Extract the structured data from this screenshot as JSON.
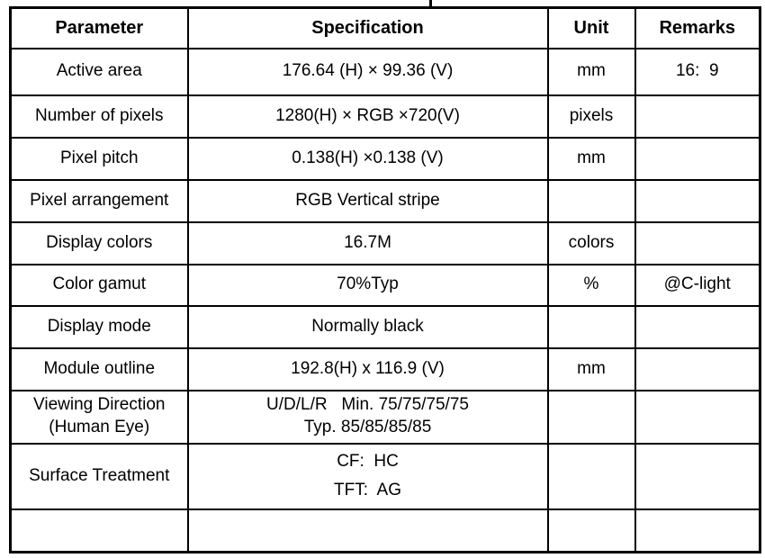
{
  "page": {
    "background": "#ffffff",
    "border_color": "#000000",
    "text_color": "#000000"
  },
  "table": {
    "columns": {
      "parameter": "Parameter",
      "specification": "Specification",
      "unit": "Unit",
      "remarks": "Remarks"
    },
    "rows": [
      {
        "parameter": "Active area",
        "specification": "176.64 (H) × 99.36 (V)",
        "unit": "mm",
        "remarks": "16:  9"
      },
      {
        "parameter": "Number of pixels",
        "specification": "1280(H) × RGB ×720(V)",
        "unit": "pixels",
        "remarks": ""
      },
      {
        "parameter": "Pixel pitch",
        "specification": "0.138(H) ×0.138 (V)",
        "unit": "mm",
        "remarks": ""
      },
      {
        "parameter": "Pixel arrangement",
        "specification": "RGB Vertical stripe",
        "unit": "",
        "remarks": ""
      },
      {
        "parameter": "Display colors",
        "specification": "16.7M",
        "unit": "colors",
        "remarks": ""
      },
      {
        "parameter": "Color gamut",
        "specification": "70%Typ",
        "unit": "%",
        "remarks": "@C-light"
      },
      {
        "parameter": "Display mode",
        "specification": "Normally black",
        "unit": "",
        "remarks": ""
      },
      {
        "parameter": "Module outline",
        "specification": "192.8(H) x 116.9 (V)",
        "unit": "mm",
        "remarks": ""
      },
      {
        "parameter": "Viewing Direction\n(Human Eye)",
        "specification": "U/D/L/R   Min. 75/75/75/75\nTyp. 85/85/85/85",
        "unit": "",
        "remarks": ""
      },
      {
        "parameter": "Surface Treatment",
        "specification": "CF:  HC\nTFT:  AG",
        "unit": "",
        "remarks": ""
      },
      {
        "parameter": "",
        "specification": "",
        "unit": "",
        "remarks": ""
      }
    ]
  }
}
